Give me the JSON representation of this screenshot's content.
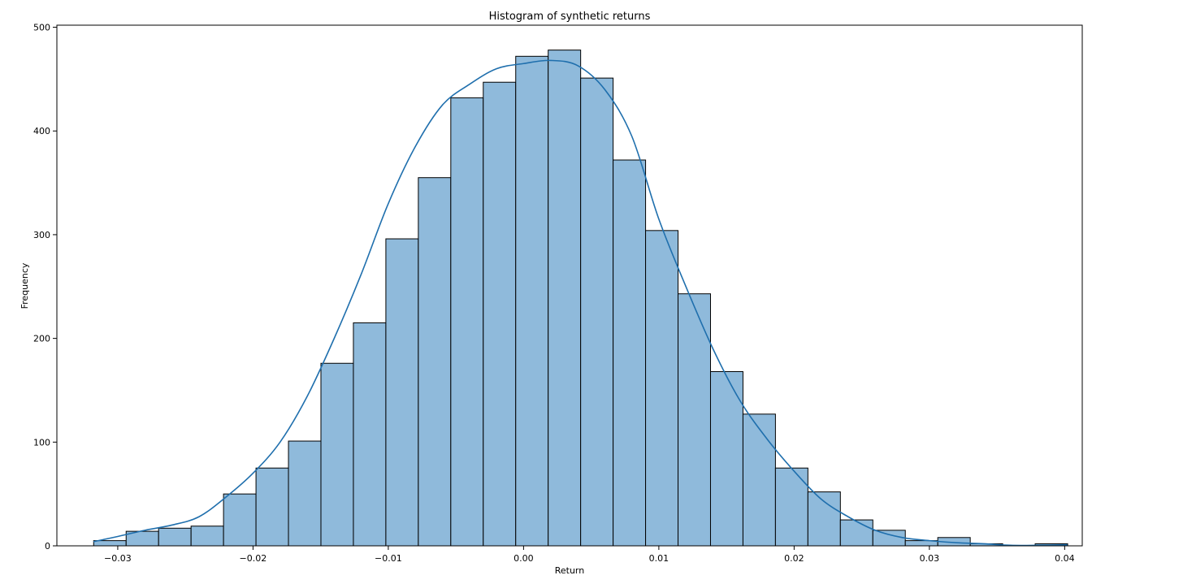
{
  "chart_data": {
    "type": "bar",
    "title": "Histogram of synthetic returns",
    "xlabel": "Return",
    "ylabel": "Frequency",
    "xlim": [
      -0.0345,
      0.0413
    ],
    "ylim": [
      0,
      502
    ],
    "x_ticks": [
      -0.03,
      -0.02,
      -0.01,
      0.0,
      0.01,
      0.02,
      0.03,
      0.04
    ],
    "x_tick_labels": [
      "−0.03",
      "−0.02",
      "−0.01",
      "0.00",
      "0.01",
      "0.02",
      "0.03",
      "0.04"
    ],
    "y_ticks": [
      0,
      100,
      200,
      300,
      400,
      500
    ],
    "y_tick_labels": [
      "0",
      "100",
      "200",
      "300",
      "400",
      "500"
    ],
    "grid": false,
    "legend": false,
    "bin_edges": [
      -0.03178,
      -0.02938,
      -0.02698,
      -0.02458,
      -0.02218,
      -0.01978,
      -0.01738,
      -0.01498,
      -0.01258,
      -0.01018,
      -0.00778,
      -0.00538,
      -0.00298,
      -0.00058,
      0.00182,
      0.00422,
      0.00662,
      0.00902,
      0.01142,
      0.01382,
      0.01622,
      0.01862,
      0.02102,
      0.02342,
      0.02582,
      0.02822,
      0.03062,
      0.03302,
      0.03542,
      0.03782,
      0.04022
    ],
    "counts": [
      5,
      14,
      17,
      19,
      50,
      75,
      101,
      176,
      215,
      296,
      355,
      432,
      447,
      472,
      478,
      451,
      372,
      304,
      243,
      168,
      127,
      75,
      52,
      25,
      15,
      5,
      8,
      2,
      0,
      2
    ],
    "kde": {
      "x": [
        -0.0318,
        -0.03,
        -0.028,
        -0.026,
        -0.024,
        -0.022,
        -0.02,
        -0.018,
        -0.016,
        -0.014,
        -0.012,
        -0.01,
        -0.008,
        -0.006,
        -0.004,
        -0.002,
        0.0,
        0.002,
        0.004,
        0.006,
        0.008,
        0.01,
        0.012,
        0.014,
        0.016,
        0.018,
        0.02,
        0.022,
        0.024,
        0.026,
        0.028,
        0.03,
        0.032,
        0.034,
        0.036,
        0.038,
        0.0402
      ],
      "y": [
        4,
        9,
        15,
        20,
        28,
        47,
        70,
        100,
        144,
        200,
        262,
        330,
        385,
        425,
        445,
        460,
        465,
        468,
        463,
        440,
        395,
        315,
        250,
        190,
        140,
        103,
        72,
        45,
        28,
        15,
        8,
        5,
        3,
        2,
        0.5,
        0.5,
        1
      ]
    },
    "colors": {
      "bar_fill": "#8fbadb",
      "bar_edge": "#000000",
      "kde_line": "#1f6fad"
    }
  }
}
